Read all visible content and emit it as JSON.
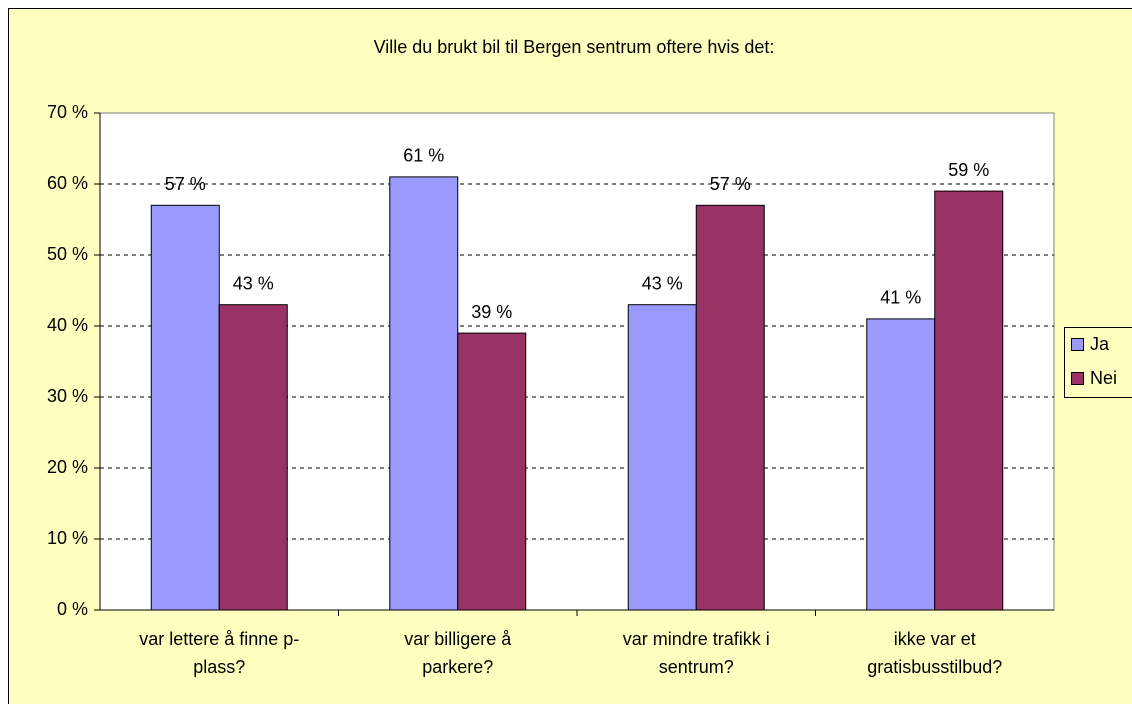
{
  "chart_data": {
    "type": "bar",
    "title": "Ville du brukt bil til Bergen sentrum oftere hvis det:",
    "categories": [
      "var lettere å finne p-plass?",
      "var billigere å parkere?",
      "var mindre trafikk i sentrum?",
      "ikke var et gratisbusstilbud?"
    ],
    "series": [
      {
        "name": "Ja",
        "color": "#9999ff",
        "values": [
          57,
          61,
          43,
          41
        ],
        "value_labels": [
          "57 %",
          "61 %",
          "43 %",
          "41 %"
        ]
      },
      {
        "name": "Nei",
        "color": "#993366",
        "values": [
          43,
          39,
          57,
          59
        ],
        "value_labels": [
          "43 %",
          "39 %",
          "57 %",
          "59 %"
        ]
      }
    ],
    "ylim": [
      0,
      70
    ],
    "yticks": [
      {
        "value": 0,
        "label": "0 %"
      },
      {
        "value": 10,
        "label": "10 %"
      },
      {
        "value": 20,
        "label": "20 %"
      },
      {
        "value": 30,
        "label": "30 %"
      },
      {
        "value": 40,
        "label": "40 %"
      },
      {
        "value": 50,
        "label": "50 %"
      },
      {
        "value": 60,
        "label": "60 %"
      },
      {
        "value": 70,
        "label": "70 %"
      }
    ],
    "grid": true,
    "legend": "right"
  }
}
